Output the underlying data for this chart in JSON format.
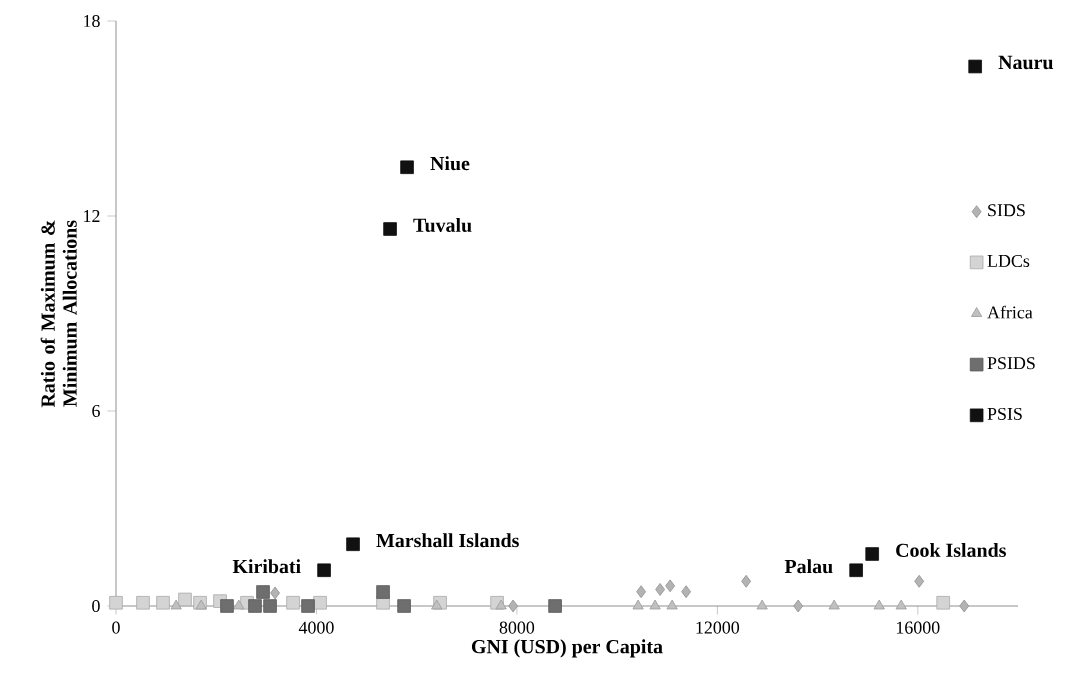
{
  "chart_data": {
    "type": "scatter",
    "xlabel": "GNI (USD) per Capita",
    "ylabel": "Ratio of Maximum & Minimum Allocations",
    "xlim": [
      0,
      18000
    ],
    "xticks": [
      0,
      4000,
      8000,
      12000,
      16000
    ],
    "ylim": [
      0,
      18
    ],
    "yticks": [
      0,
      6,
      12,
      18
    ],
    "grid": false,
    "legend": "right",
    "series": [
      {
        "name": "SIDS",
        "color": "#b3b3b3",
        "marker": "diamond",
        "x": [
          3174,
          7924,
          10479,
          10858,
          11058,
          11377,
          12575,
          13613,
          16028,
          16926
        ],
        "values": [
          0.4,
          0,
          0.44,
          0.51,
          0.62,
          0.44,
          0.76,
          0,
          0.76,
          0
        ]
      },
      {
        "name": "LDCs",
        "color": "#d4d4d4",
        "marker": "square",
        "x": [
          0,
          539,
          938,
          1377,
          1677,
          2076,
          2615,
          3533,
          4072,
          5329,
          6467,
          7605,
          16507
        ],
        "values": [
          0.1,
          0.1,
          0.1,
          0.2,
          0.1,
          0.15,
          0.1,
          0.1,
          0.1,
          0.1,
          0.1,
          0.1,
          0.1
        ]
      },
      {
        "name": "Africa",
        "color": "#c0c0c0",
        "marker": "triangle",
        "x": [
          1200,
          1700,
          2450,
          6400,
          7685,
          10419,
          10758,
          11098,
          12894,
          14331,
          15230,
          15669
        ],
        "values": [
          0,
          0,
          0,
          0,
          0,
          0,
          0,
          0,
          0,
          0,
          0,
          0
        ]
      },
      {
        "name": "PSIDS",
        "color": "#6e6e6e",
        "marker": "square",
        "x": [
          2215,
          2774,
          2934,
          3074,
          3832,
          5329,
          5749,
          8762
        ],
        "values": [
          0,
          0,
          0.43,
          0,
          0,
          0.43,
          0,
          0
        ]
      },
      {
        "name": "PSIS",
        "color": "#111111",
        "marker": "square",
        "x": [
          17145,
          5808,
          5469,
          4152,
          4730,
          14770,
          15090
        ],
        "values": [
          16.6,
          13.5,
          11.6,
          1.1,
          1.9,
          1.1,
          1.6
        ]
      }
    ],
    "annotations": [
      {
        "text": "Nauru",
        "x": 17145,
        "y": 16.6
      },
      {
        "text": "Niue",
        "x": 5808,
        "y": 13.5
      },
      {
        "text": "Tuvalu",
        "x": 5469,
        "y": 11.6
      },
      {
        "text": "Kiribati",
        "x": 4152,
        "y": 1.1
      },
      {
        "text": "Marshall Islands",
        "x": 4730,
        "y": 1.9
      },
      {
        "text": "Palau",
        "x": 14770,
        "y": 1.1
      },
      {
        "text": "Cook Islands",
        "x": 15090,
        "y": 1.6
      }
    ]
  }
}
